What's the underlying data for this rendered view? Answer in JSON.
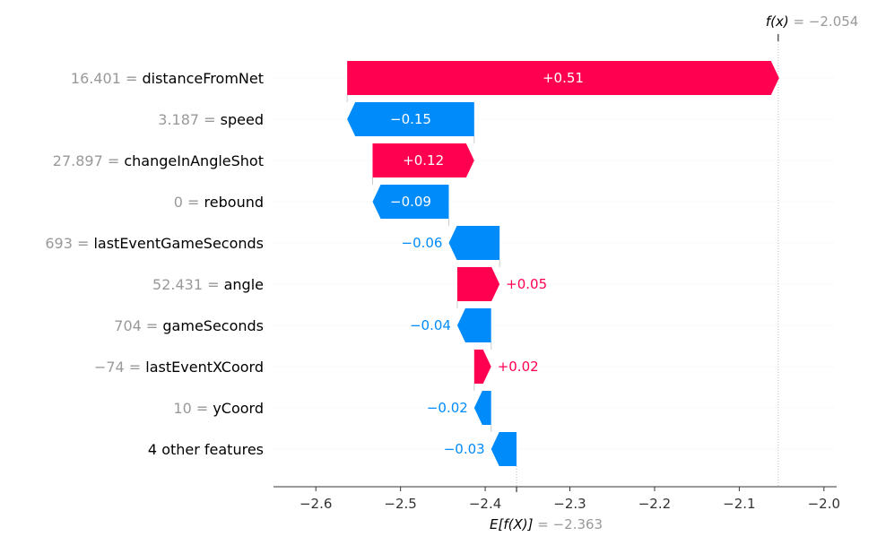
{
  "chart_data": {
    "type": "waterfall",
    "fx_label": "f(x)",
    "fx_value_text": " = −2.054",
    "fx": -2.054,
    "ex_label": "E[f(X)]",
    "ex_value_text": " = −2.363",
    "ex": -2.363,
    "colors": {
      "positive": "#ff0051",
      "negative": "#008bfb"
    },
    "xlim": [
      -2.65,
      -1.985
    ],
    "xticks": [
      -2.6,
      -2.5,
      -2.4,
      -2.3,
      -2.2,
      -2.1,
      -2.0
    ],
    "xtick_labels": [
      "−2.6",
      "−2.5",
      "−2.4",
      "−2.3",
      "−2.2",
      "−2.1",
      "−2.0"
    ],
    "features": [
      {
        "value": "16.401",
        "name": "distanceFromNet",
        "contribution": 0.51,
        "label": "+0.51"
      },
      {
        "value": "3.187",
        "name": "speed",
        "contribution": -0.15,
        "label": "−0.15"
      },
      {
        "value": "27.897",
        "name": "changeInAngleShot",
        "contribution": 0.12,
        "label": "+0.12"
      },
      {
        "value": "0",
        "name": "rebound",
        "contribution": -0.09,
        "label": "−0.09"
      },
      {
        "value": "693",
        "name": "lastEventGameSeconds",
        "contribution": -0.06,
        "label": "−0.06"
      },
      {
        "value": "52.431",
        "name": "angle",
        "contribution": 0.05,
        "label": "+0.05"
      },
      {
        "value": "704",
        "name": "gameSeconds",
        "contribution": -0.04,
        "label": "−0.04"
      },
      {
        "value": "−74",
        "name": "lastEventXCoord",
        "contribution": 0.02,
        "label": "+0.02"
      },
      {
        "value": "10",
        "name": "yCoord",
        "contribution": -0.02,
        "label": "−0.02"
      },
      {
        "value": "",
        "name": "4 other features",
        "contribution": -0.03,
        "label": "−0.03"
      }
    ]
  }
}
